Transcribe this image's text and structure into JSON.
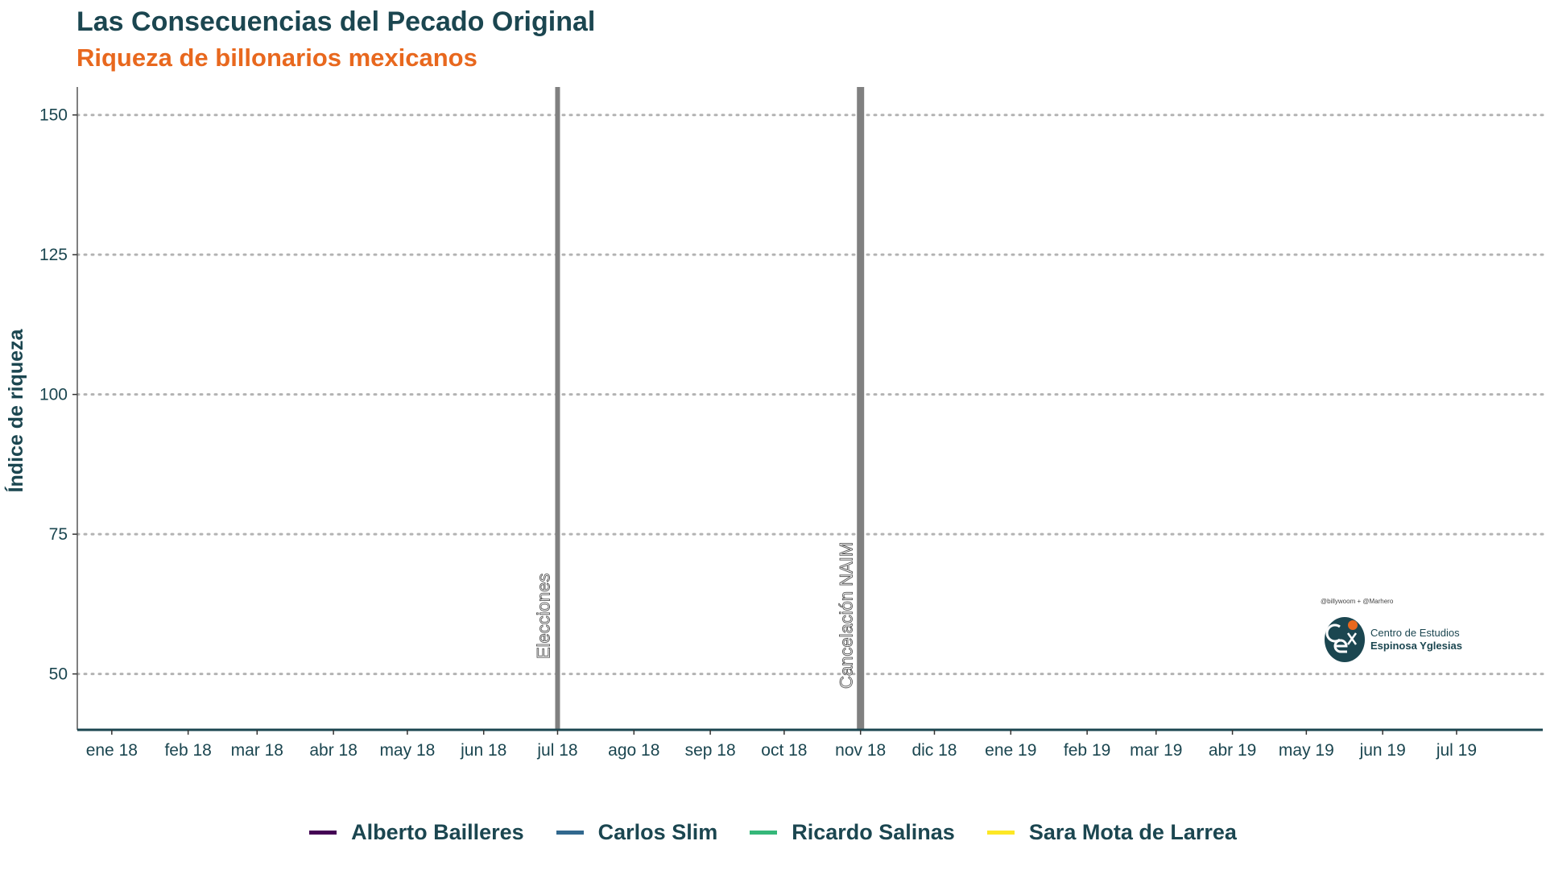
{
  "title": "Las Consecuencias del Pecado Original",
  "subtitle": "Riqueza de billonarios mexicanos",
  "chart_data": {
    "type": "line",
    "ylabel": "Índice de riqueza",
    "xlabel": "",
    "ylim": [
      40,
      155
    ],
    "yticks": [
      50,
      75,
      100,
      125,
      150
    ],
    "xlim": [
      "2017-12-18",
      "2019-08-05"
    ],
    "xticks": [
      {
        "date": "2018-01-01",
        "label": "ene 18"
      },
      {
        "date": "2018-02-01",
        "label": "feb 18"
      },
      {
        "date": "2018-03-01",
        "label": "mar 18"
      },
      {
        "date": "2018-04-01",
        "label": "abr 18"
      },
      {
        "date": "2018-05-01",
        "label": "may 18"
      },
      {
        "date": "2018-06-01",
        "label": "jun 18"
      },
      {
        "date": "2018-07-01",
        "label": "jul 18"
      },
      {
        "date": "2018-08-01",
        "label": "ago 18"
      },
      {
        "date": "2018-09-01",
        "label": "sep 18"
      },
      {
        "date": "2018-10-01",
        "label": "oct 18"
      },
      {
        "date": "2018-11-01",
        "label": "nov 18"
      },
      {
        "date": "2018-12-01",
        "label": "dic 18"
      },
      {
        "date": "2019-01-01",
        "label": "ene 19"
      },
      {
        "date": "2019-02-01",
        "label": "feb 19"
      },
      {
        "date": "2019-03-01",
        "label": "mar 19"
      },
      {
        "date": "2019-04-01",
        "label": "abr 19"
      },
      {
        "date": "2019-05-01",
        "label": "may 19"
      },
      {
        "date": "2019-06-01",
        "label": "jun 19"
      },
      {
        "date": "2019-07-01",
        "label": "jul 19"
      }
    ],
    "events": [
      {
        "date": "2018-07-01",
        "label": "Elecciones",
        "color": "#808080"
      },
      {
        "date": "2018-11-01",
        "label": "Cancelación NAIM",
        "color": "#808080"
      }
    ],
    "grid": "horizontal dotted",
    "legend_position": "bottom",
    "series": [
      {
        "name": "Alberto Bailleres",
        "color": "#440154",
        "values": []
      },
      {
        "name": "Carlos Slim",
        "color": "#31688e",
        "values": []
      },
      {
        "name": "Ricardo Salinas",
        "color": "#35b779",
        "values": []
      },
      {
        "name": "Sara Mota de Larrea",
        "color": "#fde725",
        "values": []
      }
    ]
  },
  "logo": {
    "credit": "@billywoom + @Marhero",
    "line1": "Centro de Estudios",
    "line2": "Espinosa Yglesias",
    "colors": {
      "dark": "#1b4650",
      "accent": "#e8681e"
    }
  },
  "colors": {
    "text": "#1b4650",
    "subtitle": "#e8681e",
    "grid": "#b3b3b3",
    "axis": "#1b4650"
  }
}
